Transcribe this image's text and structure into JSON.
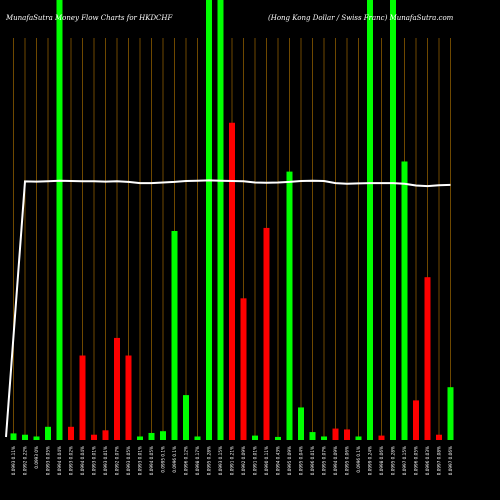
{
  "chart_data": {
    "type": "bar",
    "title": "MunafaSutra  Money Flow  Charts for HKDCHF",
    "subtitle": "(Hong Kong Dollar / Swiss Franc) MunafaSutra.com",
    "ylim": [
      0,
      100
    ],
    "grid": "vertical",
    "colors": {
      "background": "#000000",
      "up": "#00ff00",
      "down": "#ff0000",
      "grid": "#8b5a00",
      "line": "#ffffff"
    },
    "categories": [
      "0.0993 0.11%",
      "0.0992 0.22%",
      "0.0993 0%",
      "0.0993 0.05%",
      "0.0994 0.04%",
      "0.0993 0.02%",
      "0.0994 0.04%",
      "0.0993 0.01%",
      "0.0993 0.01%",
      "0.0992 0.07%",
      "0.0993 0.05%",
      "0.0993 0.01%",
      "0.0994 0.05%",
      "0.0995 0.1%",
      "0.0996 0.1%",
      "0.0996 0.12%",
      "0.0998 0.17%",
      "0.0995 0.28%",
      "0.0993 0.15%",
      "0.0991 0.21%",
      "0.0992 0.09%",
      "0.0991 0.01%",
      "0.0990 0.11%",
      "0.0994 0.43%",
      "0.0995 0.09%",
      "0.0995 0.04%",
      "0.0996 0.01%",
      "0.0995 0.07%",
      "0.0994 0.09%",
      "0.0995 0.06%",
      "0.0996 0.1%",
      "0.0999 0.24%",
      "0.0998 0.06%",
      "0.0995 0.28%",
      "0.0997 0.15%",
      "0.0996 0.05%",
      "0.0996 0.03%",
      "0.0997 0.08%",
      "0.0997 0.06%"
    ],
    "series": [
      {
        "values": [
          1.5,
          1.2,
          0.8,
          3.0,
          100,
          3.0,
          19.2,
          1.2,
          2.2,
          23.2,
          19.2,
          0.8,
          1.6,
          2.0,
          47.5,
          10.2,
          0.8,
          100,
          100,
          72.1,
          32.2,
          1.0,
          48.2,
          0.7,
          61.0,
          7.4,
          1.8,
          0.8,
          2.6,
          2.4,
          0.8,
          100,
          1.0,
          100,
          63.3,
          9.0,
          37.0,
          1.2,
          12.0
        ],
        "directions": [
          "up",
          "up",
          "up",
          "up",
          "up",
          "down",
          "down",
          "down",
          "down",
          "down",
          "down",
          "up",
          "up",
          "up",
          "up",
          "up",
          "up",
          "up",
          "up",
          "down",
          "down",
          "up",
          "down",
          "up",
          "up",
          "up",
          "up",
          "up",
          "down",
          "down",
          "up",
          "up",
          "down",
          "up",
          "up",
          "down",
          "down",
          "down",
          "up"
        ]
      },
      {
        "type": "line",
        "values": [
          60,
          0.85,
          0.8,
          0.9,
          1.05,
          1.0,
          0.9,
          0.9,
          0.8,
          0.9,
          0.7,
          0.3,
          0.3,
          0.5,
          0.7,
          1.0,
          1.1,
          1.2,
          1.1,
          1.0,
          0.9,
          0.5,
          0.4,
          0.5,
          0.7,
          1.0,
          1.1,
          1.0,
          0.3,
          0.1,
          0.2,
          0.3,
          0.3,
          0.3,
          0.1,
          -0.5,
          -0.7,
          -0.4,
          -0.3
        ],
        "ylim": [
          -110,
          30
        ]
      }
    ]
  }
}
